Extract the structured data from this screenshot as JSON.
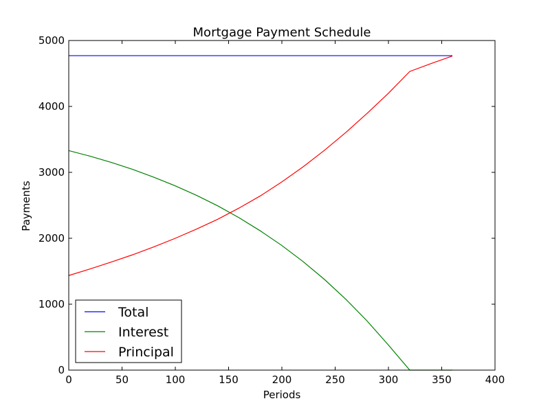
{
  "chart_data": {
    "type": "line",
    "title": "Mortgage Payment Schedule",
    "xlabel": "Periods",
    "ylabel": "Payments",
    "xlim": [
      0,
      400
    ],
    "ylim": [
      0,
      5000
    ],
    "x_ticks": [
      0,
      50,
      100,
      150,
      200,
      250,
      300,
      350,
      400
    ],
    "y_ticks": [
      0,
      1000,
      2000,
      3000,
      4000,
      5000
    ],
    "grid": false,
    "legend_position": "lower-left",
    "x": [
      0,
      20,
      40,
      60,
      80,
      100,
      120,
      140,
      160,
      180,
      200,
      220,
      240,
      260,
      280,
      300,
      320,
      340,
      360
    ],
    "series": [
      {
        "name": "Total",
        "color": "#0000ff",
        "values": [
          4770,
          4770,
          4770,
          4770,
          4770,
          4770,
          4770,
          4770,
          4770,
          4770,
          4770,
          4770,
          4770,
          4770,
          4770,
          4770,
          4770,
          4770,
          4770
        ]
      },
      {
        "name": "Interest",
        "color": "#008000",
        "values": [
          3330,
          3245,
          3150,
          3045,
          2925,
          2795,
          2650,
          2490,
          2310,
          2110,
          1890,
          1645,
          1375,
          1075,
          745,
          380,
          0,
          0,
          0
        ]
      },
      {
        "name": "Principal",
        "color": "#ff0000",
        "values": [
          1435,
          1535,
          1640,
          1750,
          1870,
          2000,
          2140,
          2290,
          2460,
          2645,
          2855,
          3085,
          3335,
          3605,
          3895,
          4200,
          4530,
          4650,
          4765
        ]
      }
    ]
  }
}
